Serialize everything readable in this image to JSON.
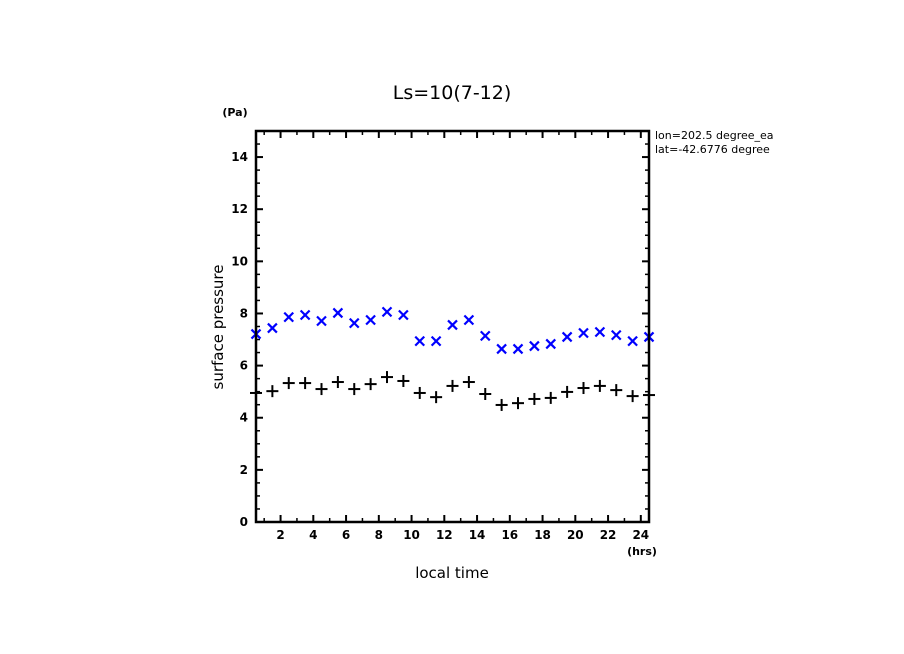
{
  "chart_data": {
    "type": "scatter",
    "title": "Ls=10(7-12)",
    "xlabel": "local time",
    "ylabel": "surface pressure",
    "x_unit": "(hrs)",
    "y_unit": "(Pa)",
    "xlim": [
      0.5,
      24.5
    ],
    "ylim": [
      0,
      15
    ],
    "x_ticks": [
      2,
      4,
      6,
      8,
      10,
      12,
      14,
      16,
      18,
      20,
      22,
      24
    ],
    "x_tick_labels": [
      "2",
      "4",
      "6",
      "8",
      "10",
      "12",
      "14",
      "16",
      "18",
      "20",
      "22",
      "24"
    ],
    "y_ticks": [
      0,
      2,
      4,
      6,
      8,
      10,
      12,
      14
    ],
    "y_tick_labels": [
      "0",
      "2",
      "4",
      "6",
      "8",
      "10",
      "12",
      "14"
    ],
    "grid": false,
    "annotations": [
      "lon=202.5 degree_ea",
      "lat=-42.6776 degree"
    ],
    "x": [
      0.5,
      1.5,
      2.5,
      3.5,
      4.5,
      5.5,
      6.5,
      7.5,
      8.5,
      9.5,
      10.5,
      11.5,
      12.5,
      13.5,
      14.5,
      15.5,
      16.5,
      17.5,
      18.5,
      19.5,
      20.5,
      21.5,
      22.5,
      23.5,
      24.5
    ],
    "series": [
      {
        "name": "series-x-blue",
        "marker": "x",
        "color": "#0000ff",
        "values": [
          7.21,
          7.44,
          7.86,
          7.94,
          7.71,
          8.02,
          7.63,
          7.75,
          8.06,
          7.94,
          6.94,
          6.94,
          7.56,
          7.75,
          7.14,
          6.64,
          6.64,
          6.75,
          6.83,
          7.1,
          7.25,
          7.29,
          7.17,
          6.94,
          7.1
        ]
      },
      {
        "name": "series-plus-black",
        "marker": "+",
        "color": "#000000",
        "values": [
          4.95,
          5.02,
          5.33,
          5.33,
          5.1,
          5.37,
          5.1,
          5.29,
          5.56,
          5.41,
          4.95,
          4.79,
          5.22,
          5.37,
          4.91,
          4.49,
          4.56,
          4.72,
          4.76,
          4.99,
          5.14,
          5.22,
          5.06,
          4.83,
          4.87
        ]
      }
    ]
  }
}
